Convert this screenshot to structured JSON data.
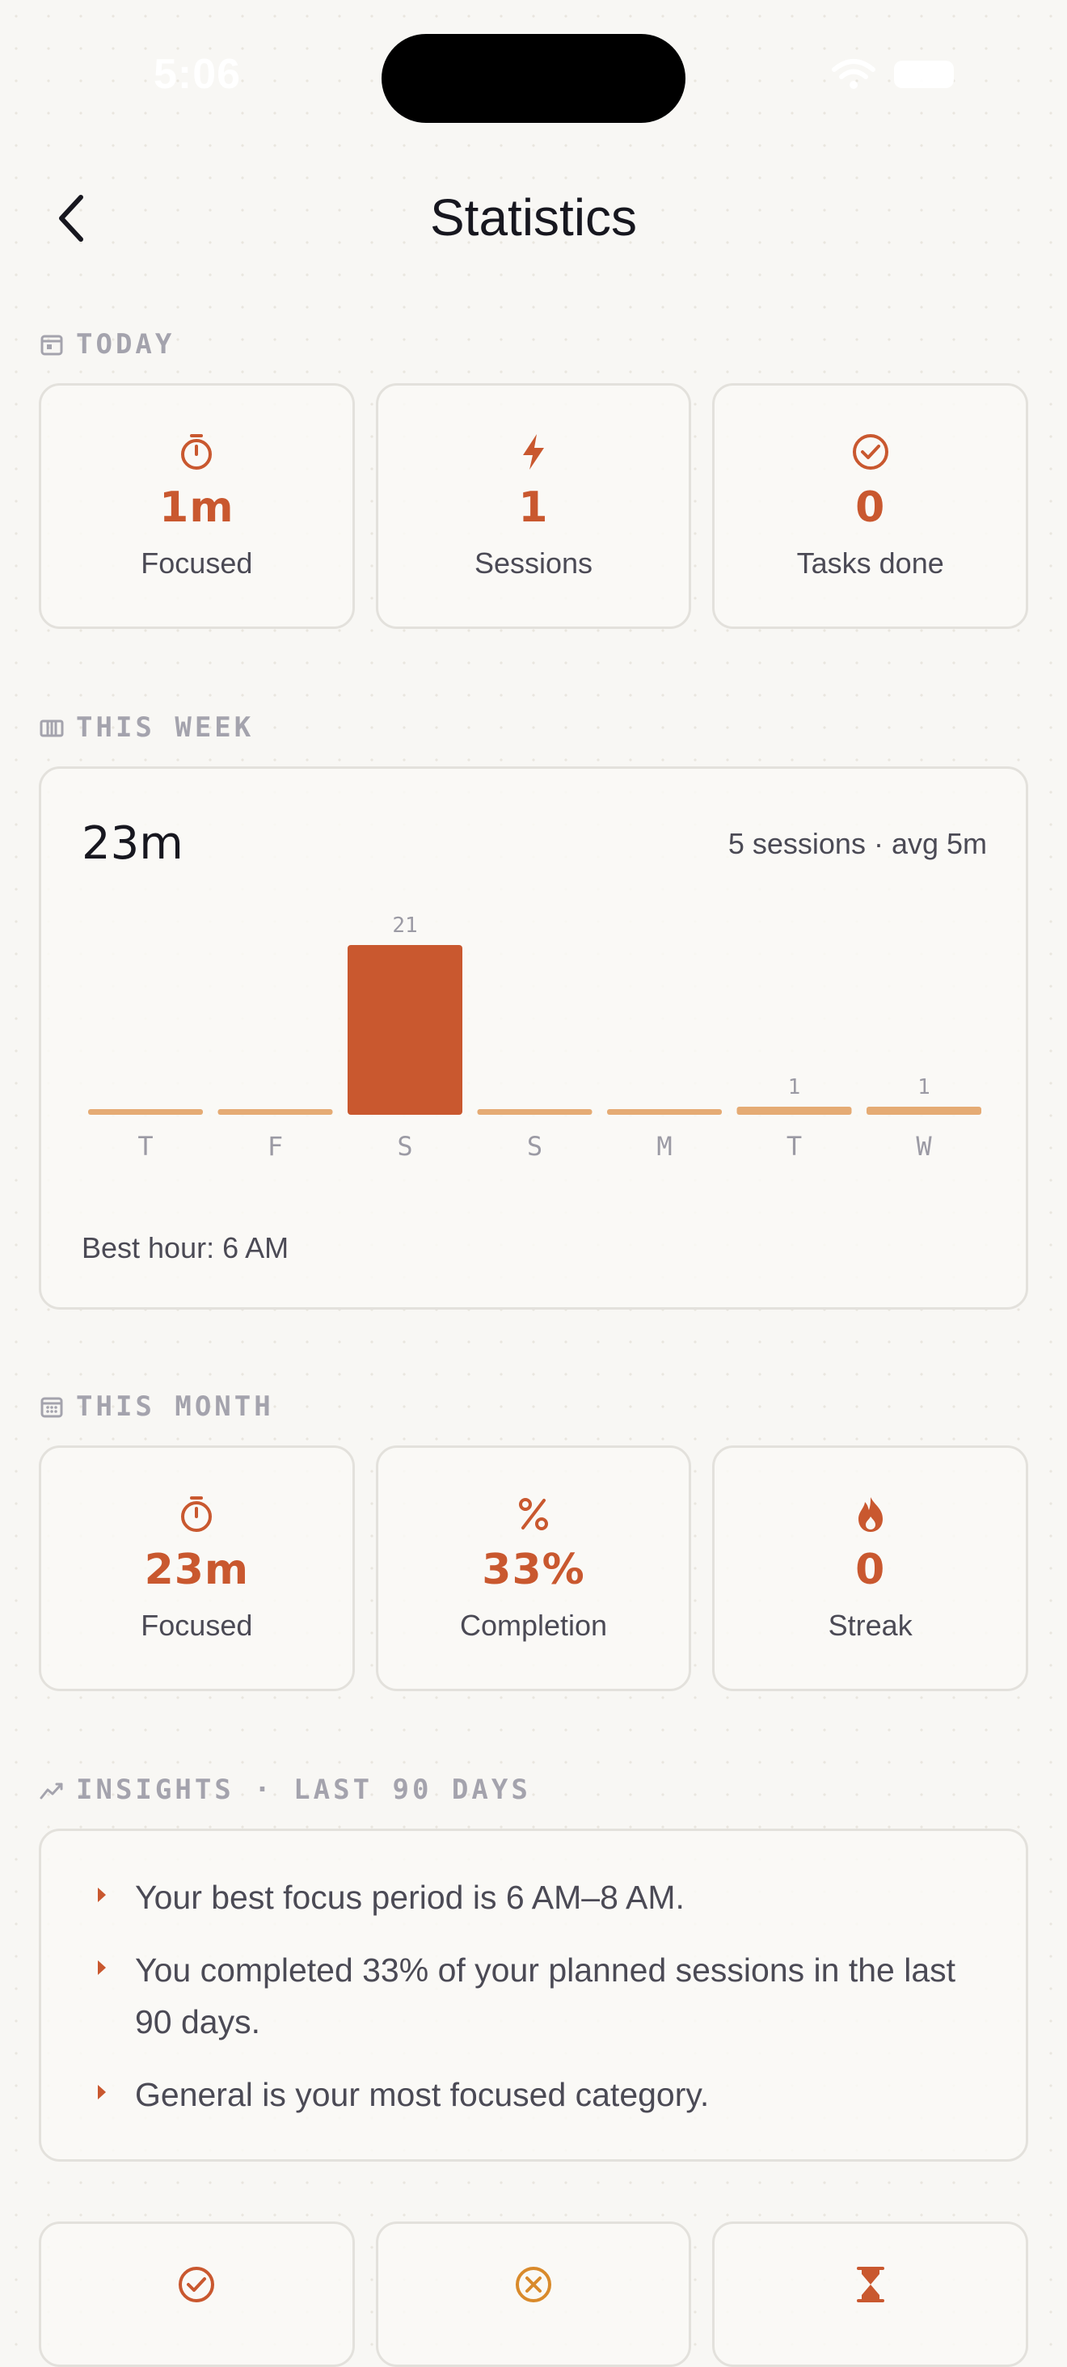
{
  "status_bar": {
    "time": "5:06"
  },
  "nav": {
    "title": "Statistics"
  },
  "today": {
    "label": "TODAY",
    "cards": [
      {
        "icon": "timer-icon",
        "value": "1m",
        "label": "Focused"
      },
      {
        "icon": "bolt-icon",
        "value": "1",
        "label": "Sessions"
      },
      {
        "icon": "check-circle-icon",
        "value": "0",
        "label": "Tasks done"
      }
    ]
  },
  "week": {
    "label": "THIS WEEK",
    "total": "23m",
    "summary": "5 sessions · avg 5m",
    "best_hour": "Best hour: 6 AM"
  },
  "chart_data": {
    "type": "bar",
    "categories": [
      "T",
      "F",
      "S",
      "S",
      "M",
      "T",
      "W"
    ],
    "values": [
      0,
      0,
      21,
      0,
      0,
      1,
      1
    ],
    "data_labels": [
      "",
      "",
      "21",
      "",
      "",
      "1",
      "1"
    ],
    "ylim": [
      0,
      21
    ],
    "colors": {
      "highlight": "#c9582f",
      "bar": "#e5ab74"
    }
  },
  "month": {
    "label": "THIS MONTH",
    "cards": [
      {
        "icon": "timer-icon",
        "value": "23m",
        "label": "Focused"
      },
      {
        "icon": "percent-icon",
        "value": "33%",
        "label": "Completion"
      },
      {
        "icon": "flame-icon",
        "value": "0",
        "label": "Streak"
      }
    ]
  },
  "insights": {
    "label": "INSIGHTS · LAST 90 DAYS",
    "items": [
      "Your best focus period is 6 AM–8 AM.",
      "You completed 33% of your planned sessions in the last 90 days.",
      "General is your most focused category."
    ]
  },
  "bottom_cards": [
    {
      "icon": "check-circle-icon"
    },
    {
      "icon": "x-circle-icon"
    },
    {
      "icon": "hourglass-icon"
    }
  ],
  "colors": {
    "accent": "#c9582f",
    "muted": "#a4a3ad",
    "text": "#4b4a55",
    "border": "#e3e1dc",
    "background": "#f8f7f4"
  }
}
